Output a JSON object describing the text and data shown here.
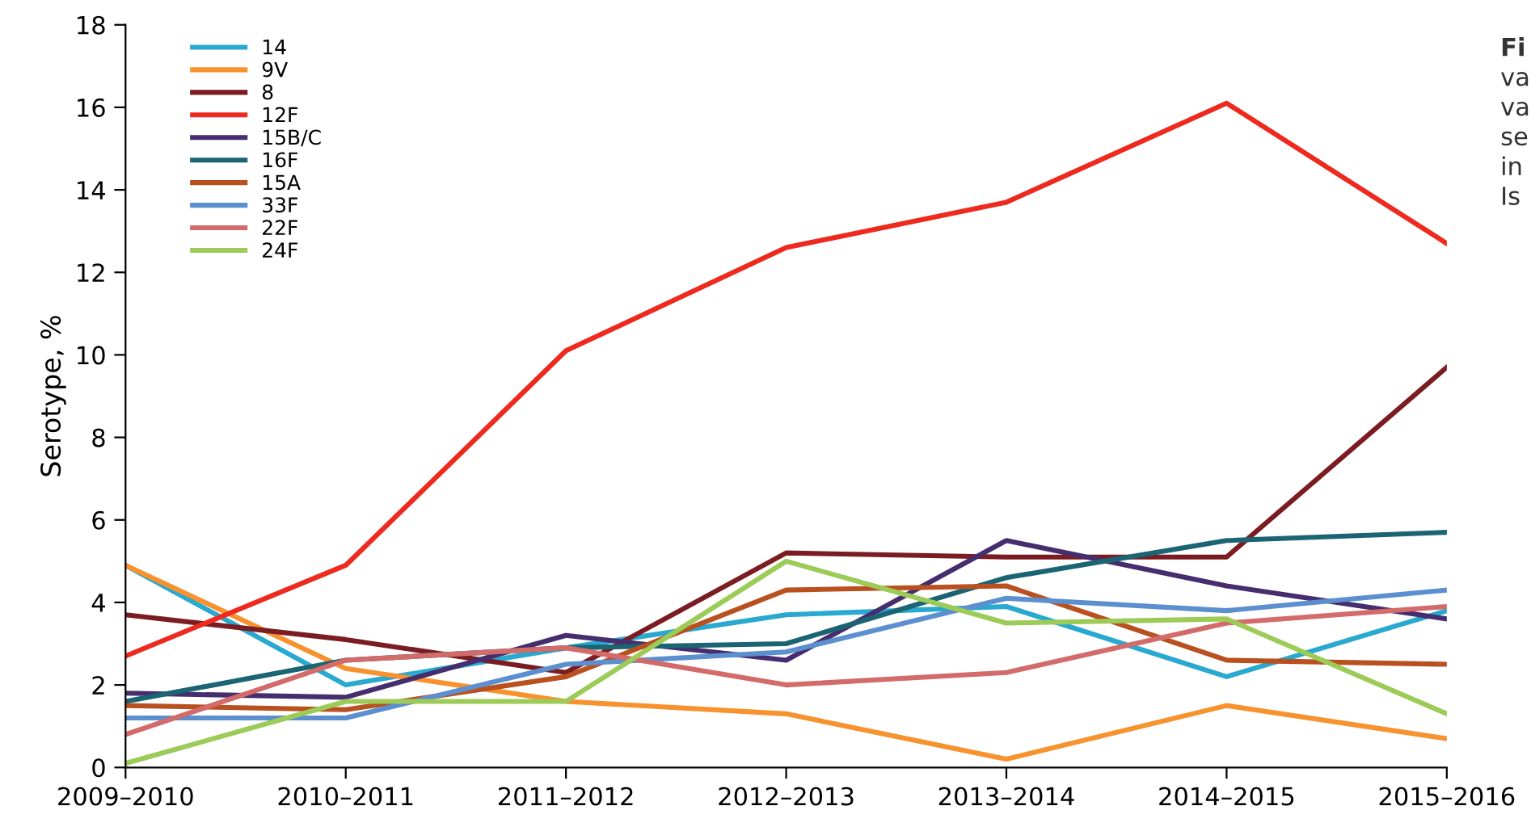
{
  "chart_data": {
    "type": "line",
    "ylabel": "Serotype, %",
    "categories": [
      "2009–2010",
      "2010–2011",
      "2011–2012",
      "2012–2013",
      "2013–2014",
      "2014–2015",
      "2015–2016"
    ],
    "series": [
      {
        "name": "14",
        "color": "#29a9cf",
        "values": [
          4.9,
          2.0,
          2.9,
          3.7,
          3.9,
          2.2,
          3.8
        ]
      },
      {
        "name": "9V",
        "color": "#f7922e",
        "values": [
          4.9,
          2.4,
          1.6,
          1.3,
          0.2,
          1.5,
          0.7
        ]
      },
      {
        "name": "8",
        "color": "#7b1c22",
        "values": [
          3.7,
          3.1,
          2.3,
          5.2,
          5.1,
          5.1,
          9.7
        ]
      },
      {
        "name": "12F",
        "color": "#ee2a1f",
        "values": [
          2.7,
          4.9,
          10.1,
          12.6,
          13.7,
          16.1,
          12.7
        ]
      },
      {
        "name": "15B/C",
        "color": "#452d6e",
        "values": [
          1.8,
          1.7,
          3.2,
          2.6,
          5.5,
          4.4,
          3.6
        ]
      },
      {
        "name": "16F",
        "color": "#1b6473",
        "values": [
          1.6,
          2.6,
          2.9,
          3.0,
          4.6,
          5.5,
          5.7
        ]
      },
      {
        "name": "15A",
        "color": "#b9501f",
        "values": [
          1.5,
          1.4,
          2.2,
          4.3,
          4.4,
          2.6,
          2.5
        ]
      },
      {
        "name": "33F",
        "color": "#5b8fd0",
        "values": [
          1.2,
          1.2,
          2.5,
          2.8,
          4.1,
          3.8,
          4.3
        ]
      },
      {
        "name": "22F",
        "color": "#d36b6b",
        "values": [
          0.8,
          2.6,
          2.9,
          2.0,
          2.3,
          3.5,
          3.9
        ]
      },
      {
        "name": "24F",
        "color": "#9ccb57",
        "values": [
          0.1,
          1.6,
          1.6,
          5.0,
          3.5,
          3.6,
          1.3
        ]
      }
    ],
    "ylim": [
      0,
      18
    ],
    "yticks": [
      0,
      2,
      4,
      6,
      8,
      10,
      12,
      14,
      16,
      18
    ],
    "grid": false,
    "legend": "top left",
    "marker": "none",
    "line_style": "solid",
    "annotations": [
      "Fi",
      "va",
      "va",
      "se",
      "in",
      "Is"
    ]
  }
}
